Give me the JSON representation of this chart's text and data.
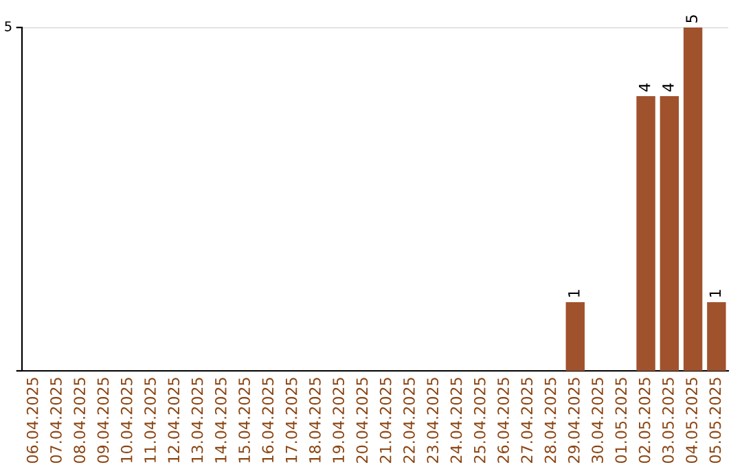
{
  "chart_data": {
    "type": "bar",
    "categories": [
      "06.04.2025",
      "07.04.2025",
      "08.04.2025",
      "09.04.2025",
      "10.04.2025",
      "11.04.2025",
      "12.04.2025",
      "13.04.2025",
      "14.04.2025",
      "15.04.2025",
      "16.04.2025",
      "17.04.2025",
      "18.04.2025",
      "19.04.2025",
      "20.04.2025",
      "21.04.2025",
      "22.04.2025",
      "23.04.2025",
      "24.04.2025",
      "25.04.2025",
      "26.04.2025",
      "27.04.2025",
      "28.04.2025",
      "29.04.2025",
      "30.04.2025",
      "01.05.2025",
      "02.05.2025",
      "03.05.2025",
      "04.05.2025",
      "05.05.2025"
    ],
    "values": [
      null,
      null,
      null,
      null,
      null,
      null,
      null,
      null,
      null,
      null,
      null,
      null,
      null,
      null,
      null,
      null,
      null,
      null,
      null,
      null,
      null,
      null,
      null,
      1,
      null,
      null,
      4,
      4,
      5,
      1
    ],
    "color": "#a0522d",
    "ylim": [
      0,
      5
    ],
    "yticks": [
      {
        "value": 0,
        "label": null
      },
      5
    ],
    "ref_lines": [
      {
        "axis": "y",
        "value": 5,
        "color": "#cccccc"
      }
    ],
    "data_labels": true,
    "legend": false
  }
}
